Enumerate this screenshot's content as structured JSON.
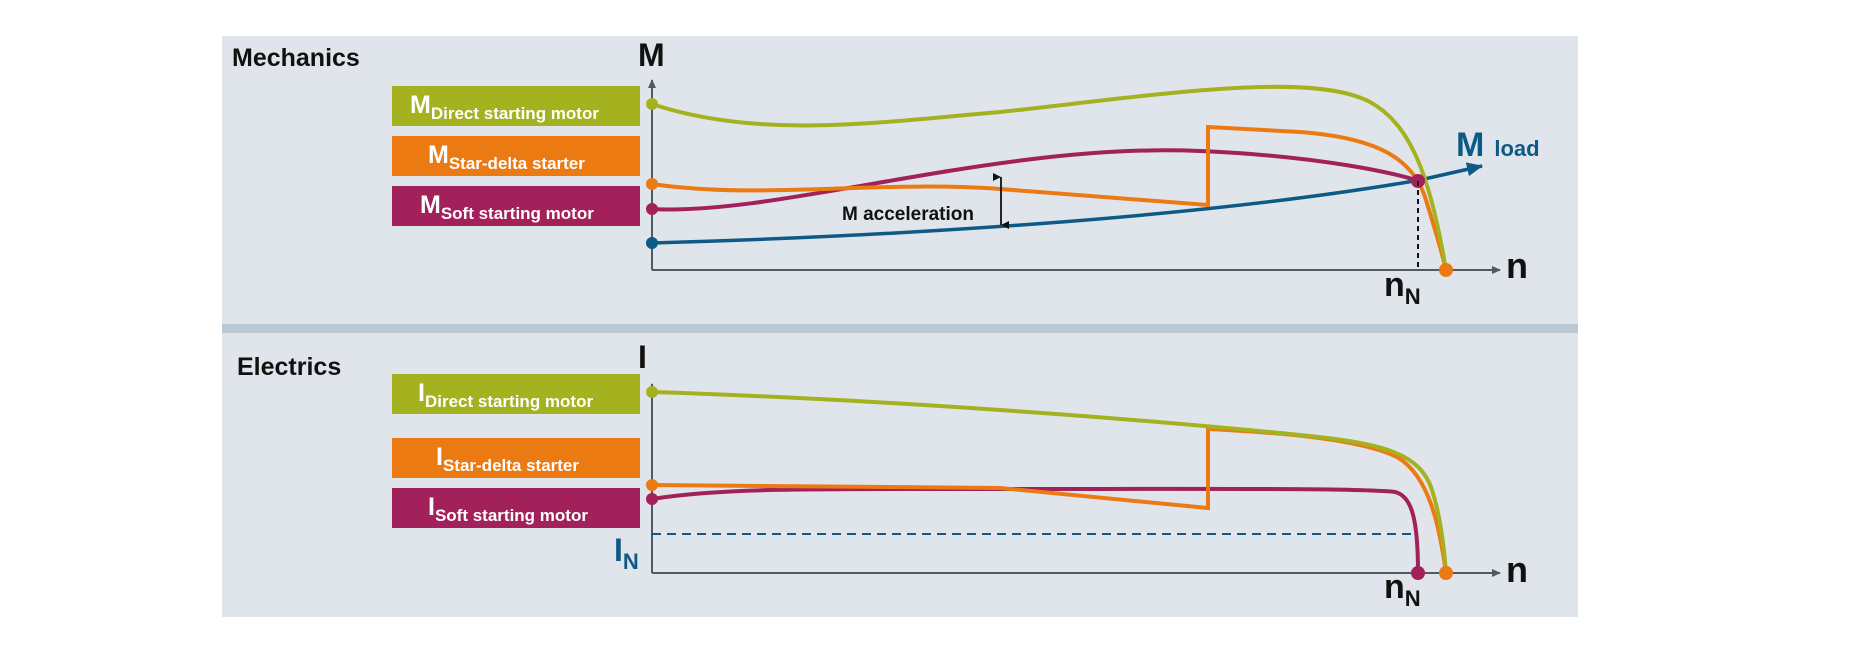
{
  "colors": {
    "panel_bg": "#dfe5eb",
    "divider": "#b9c8d2",
    "axis": "#505a64",
    "direct": "#a5b21f",
    "star_delta": "#ec7a12",
    "soft": "#a3215a",
    "load": "#0e5a86",
    "text": "#111111"
  },
  "mechanics": {
    "title": "Mechanics",
    "y_axis": "M",
    "x_axis": "n",
    "nominal_speed": {
      "main": "n",
      "sub": "N"
    },
    "load_label": {
      "main": "M",
      "sub": "load"
    },
    "acceleration_label": "M acceleration",
    "legend": [
      {
        "main": "M",
        "sub": "Direct starting motor",
        "color_key": "direct"
      },
      {
        "main": "M",
        "sub": "Star-delta starter",
        "color_key": "star_delta"
      },
      {
        "main": "M",
        "sub": "Soft starting motor",
        "color_key": "soft"
      }
    ]
  },
  "electrics": {
    "title": "Electrics",
    "y_axis": "I",
    "x_axis": "n",
    "nominal_speed": {
      "main": "n",
      "sub": "N"
    },
    "nominal_current": {
      "main": "I",
      "sub": "N"
    },
    "legend": [
      {
        "main": "I",
        "sub": "Direct starting motor",
        "color_key": "direct"
      },
      {
        "main": "I",
        "sub": "Star-delta starter",
        "color_key": "star_delta"
      },
      {
        "main": "I",
        "sub": "Soft starting motor",
        "color_key": "soft"
      }
    ]
  }
}
